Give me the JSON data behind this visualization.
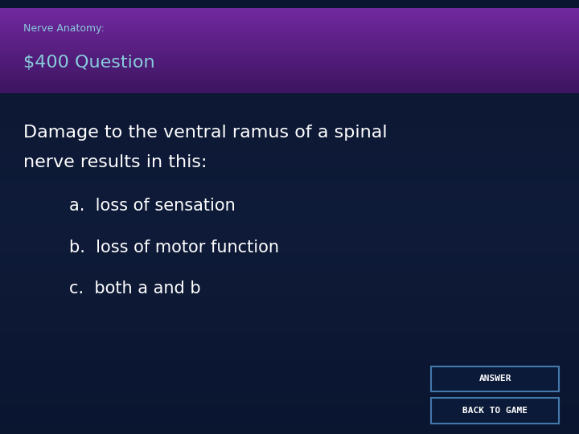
{
  "bg_color_top": "#0a1530",
  "bg_color_bottom": "#1a2a50",
  "header_bg_top": "#3d1560",
  "header_bg_bottom": "#7228a0",
  "header_strip_color": "#0a1530",
  "subtitle": "Nerve Anatomy:",
  "subtitle_color": "#88ccdd",
  "subtitle_fontsize": 9,
  "title": "$400 Question",
  "title_color": "#88ccdd",
  "title_fontsize": 16,
  "question_line1": "Damage to the ventral ramus of a spinal",
  "question_line2": "nerve results in this:",
  "question_color": "#ffffff",
  "question_fontsize": 16,
  "options": [
    "a.  loss of sensation",
    "b.  loss of motor function",
    "c.  both a and b"
  ],
  "options_color": "#ffffff",
  "options_fontsize": 15,
  "button_bg": "#0a1a38",
  "button_border": "#4477aa",
  "button_text_color": "#ffffff",
  "button_fontsize": 8,
  "buttons": [
    "ANSWER",
    "BACK TO GAME"
  ]
}
